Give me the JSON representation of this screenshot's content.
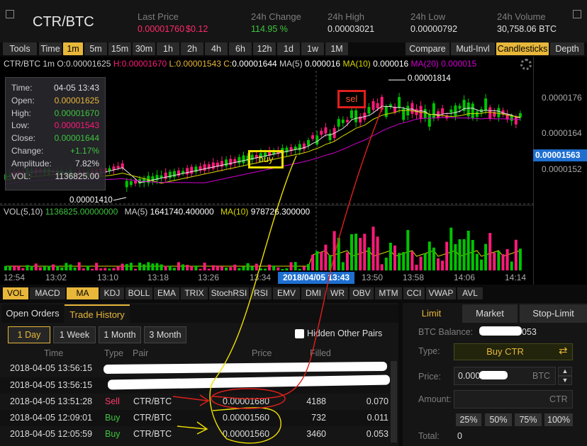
{
  "header": {
    "pair": "CTR/BTC",
    "last_price_label": "Last Price",
    "last_price_btc": "0.00001760",
    "last_price_usd": "$0.12",
    "change_label": "24h Change",
    "change_value": "114.95 %",
    "high_label": "24h High",
    "high_value": "0.00003021",
    "low_label": "24h Low",
    "low_value": "0.00000792",
    "volume_label": "24h Volume",
    "volume_value": "30,758.06 BTC"
  },
  "toolbar": {
    "tools": "Tools",
    "intervals": [
      "Time",
      "1m",
      "5m",
      "15m",
      "30m",
      "1h",
      "2h",
      "4h",
      "6h",
      "12h",
      "1d",
      "1w",
      "1M"
    ],
    "active_interval": "1m",
    "right": [
      "Compare",
      "Mutl-Invl",
      "Candlesticks",
      "Depth"
    ],
    "active_right": "Candlesticks"
  },
  "chart_info": {
    "prefix": "CTR/BTC 1m",
    "o_label": "O:",
    "o_value": "0.00001625",
    "h_label": "H:",
    "h_value": "0.00001670",
    "l_label": "L:",
    "l_value": "0.00001543",
    "c_label": "C:",
    "c_value": "0.00001644",
    "ma5_label": "MA(5)",
    "ma5_value": "0.000016",
    "ma10_label": "MA(10)",
    "ma10_value": "0.000016",
    "ma20_label": "MA(20)",
    "ma20_value": "0.000015"
  },
  "infobox": {
    "rows": [
      {
        "k": "Time:",
        "v": "04-05 13:43"
      },
      {
        "k": "Open:",
        "v": "0.00001625"
      },
      {
        "k": "High:",
        "v": "0.00001670"
      },
      {
        "k": "Low:",
        "v": "0.00001543"
      },
      {
        "k": "Close:",
        "v": "0.00001644"
      },
      {
        "k": "Change:",
        "v": "+1.17%"
      },
      {
        "k": "Amplitude:",
        "v": "7.82%"
      },
      {
        "k": "VOL:",
        "v": "1136825.00"
      }
    ]
  },
  "annotations": {
    "max_label": "0.00001814",
    "min_label": "0.00001410",
    "buy_label": "buy",
    "sell_label": "sel"
  },
  "price_axis": {
    "ticks": [
      "0.0000176",
      "0.0000164",
      "0.0000152"
    ],
    "current": "0.00001563"
  },
  "volume_info": {
    "label": "VOL(5,10)",
    "value": "1136825.00000000",
    "ma5_label": "MA(5)",
    "ma5_value": "1641740.400000",
    "ma10_label": "MA(10)",
    "ma10_value": "978726.300000"
  },
  "time_axis": {
    "ticks": [
      "12:54",
      "13:02",
      "13:10",
      "13:18",
      "13:26",
      "13:34",
      "13:50",
      "13:58",
      "14:06",
      "14:14"
    ],
    "crosshair": "2018/04/05 13:43"
  },
  "indicators": {
    "items": [
      "VOL",
      "MACD",
      "MA",
      "KDJ",
      "BOLL",
      "EMA",
      "TRIX",
      "StochRSI",
      "RSI",
      "EMV",
      "DMI",
      "WR",
      "OBV",
      "MTM",
      "CCI",
      "VWAP",
      "AVL"
    ],
    "active": [
      "VOL",
      "MA"
    ]
  },
  "orders": {
    "tabs": [
      "Open Orders",
      "Trade History"
    ],
    "active_tab": "Trade History",
    "filters": [
      "1 Day",
      "1 Week",
      "1 Month",
      "3 Month"
    ],
    "active_filter": "1 Day",
    "hide_label": "Hidden Other Pairs",
    "columns": [
      "Time",
      "Type",
      "Pair",
      "Price",
      "Filled"
    ],
    "rows": [
      {
        "time": "2018-04-05 13:56:15",
        "type": "",
        "pair": "",
        "price": "",
        "filled": "",
        "total": ""
      },
      {
        "time": "2018-04-05 13:56:15",
        "type": "",
        "pair": "",
        "price": "",
        "filled": "",
        "total": ""
      },
      {
        "time": "2018-04-05 13:51:28",
        "type": "Sell",
        "pair": "CTR/BTC",
        "price": "0.00001680",
        "filled": "4188",
        "total": "0.070"
      },
      {
        "time": "2018-04-05 12:09:01",
        "type": "Buy",
        "pair": "CTR/BTC",
        "price": "0.00001560",
        "filled": "732",
        "total": "0.011"
      },
      {
        "time": "2018-04-05 12:05:59",
        "type": "Buy",
        "pair": "CTR/BTC",
        "price": "0.00001560",
        "filled": "3460",
        "total": "0.053"
      }
    ]
  },
  "trade_form": {
    "tabs": [
      "Limit",
      "Market",
      "Stop-Limit"
    ],
    "active_tab": "Limit",
    "balance_label": "BTC Balance:",
    "balance_value": "053",
    "type_label": "Type:",
    "type_value": "Buy CTR",
    "price_label": "Price:",
    "price_value": "0.000",
    "price_unit": "BTC",
    "amount_label": "Amount:",
    "amount_unit": "CTR",
    "percents": [
      "25%",
      "50%",
      "75%",
      "100%"
    ],
    "total_label": "Total:",
    "total_value": "0"
  },
  "colors": {
    "up": "#00c400",
    "down": "#ff1a7a",
    "accent": "#e8b73a",
    "ma5": "#e8e8e8",
    "ma10": "#d8d800",
    "ma20": "#d000d0"
  }
}
